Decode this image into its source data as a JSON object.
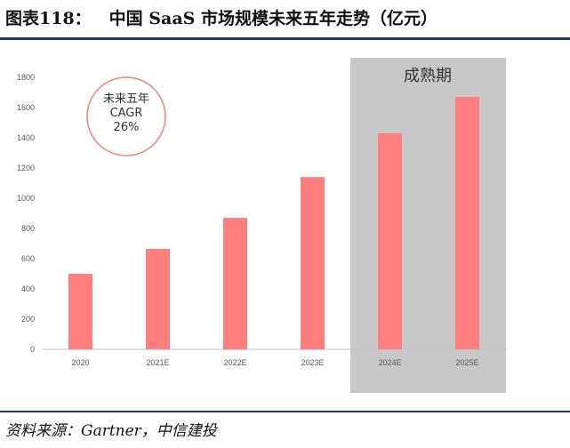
{
  "figure": {
    "number": "图表118：",
    "title": "中国 SaaS 市场规模未来五年走势（亿元）"
  },
  "source": "资料来源：Gartner，中信建投",
  "chart_data": {
    "type": "bar",
    "title": "中国 SaaS 市场规模未来五年走势（亿元）",
    "categories": [
      "2020",
      "2021E",
      "2022E",
      "2023E",
      "2024E",
      "2025E"
    ],
    "values": [
      500,
      665,
      870,
      1140,
      1430,
      1670
    ],
    "ylim": [
      0,
      1800
    ],
    "yticks": [
      0,
      200,
      400,
      600,
      800,
      1000,
      1200,
      1400,
      1600,
      1800
    ],
    "xlabel": "",
    "ylabel": "",
    "bar_color": "#ff7f7f",
    "highlight": {
      "label": "成熟期",
      "categories": [
        "2024E",
        "2025E"
      ],
      "color": "#c8c8c8"
    },
    "annotation": {
      "lines": [
        "未来五年",
        "CAGR",
        "26%"
      ],
      "circle_color": "#f28080"
    }
  }
}
